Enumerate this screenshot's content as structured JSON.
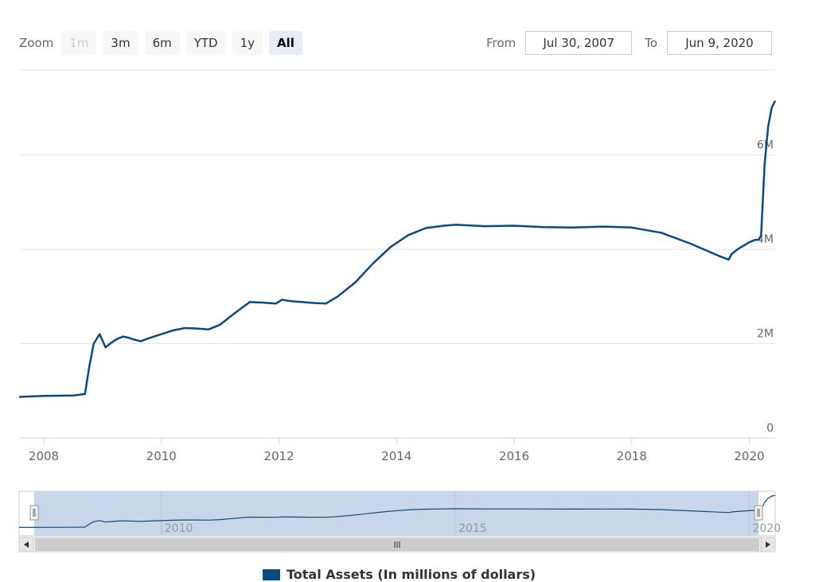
{
  "zoom": {
    "label": "Zoom",
    "buttons": [
      {
        "label": "1m",
        "state": "disabled"
      },
      {
        "label": "3m",
        "state": "normal"
      },
      {
        "label": "6m",
        "state": "normal"
      },
      {
        "label": "YTD",
        "state": "normal"
      },
      {
        "label": "1y",
        "state": "normal"
      },
      {
        "label": "All",
        "state": "active"
      }
    ]
  },
  "range": {
    "from_label": "From",
    "from_value": "Jul 30, 2007",
    "to_label": "To",
    "to_value": "Jun 9, 2020"
  },
  "colors": {
    "series": "#0b4a7e",
    "navigator_fill": "#c9d6ea",
    "grid": "#e6e6e6"
  },
  "navigator": {
    "tick_labels": [
      "2010",
      "2015",
      "2020"
    ]
  },
  "chart_data": {
    "type": "line",
    "title": "",
    "xlabel": "",
    "ylabel": "",
    "x_ticks": [
      "2008",
      "2010",
      "2012",
      "2014",
      "2016",
      "2018",
      "2020"
    ],
    "y_ticks": [
      "0",
      "2M",
      "4M",
      "6M"
    ],
    "xlim": [
      2007.58,
      2020.44
    ],
    "ylim": [
      0,
      7800000
    ],
    "grid": true,
    "legend": "bottom-center",
    "series": [
      {
        "name": "Total Assets (In millions of dollars)",
        "x": [
          2007.58,
          2008.0,
          2008.5,
          2008.7,
          2008.78,
          2008.85,
          2008.95,
          2009.05,
          2009.15,
          2009.25,
          2009.35,
          2009.45,
          2009.55,
          2009.65,
          2009.8,
          2010.0,
          2010.2,
          2010.4,
          2010.6,
          2010.8,
          2011.0,
          2011.2,
          2011.5,
          2011.7,
          2011.95,
          2012.05,
          2012.2,
          2012.4,
          2012.6,
          2012.8,
          2013.0,
          2013.3,
          2013.6,
          2013.9,
          2014.2,
          2014.5,
          2014.8,
          2015.0,
          2015.5,
          2016.0,
          2016.5,
          2017.0,
          2017.5,
          2018.0,
          2018.5,
          2019.0,
          2019.5,
          2019.65,
          2019.7,
          2019.8,
          2020.0,
          2020.1,
          2020.16,
          2020.2,
          2020.26,
          2020.32,
          2020.38,
          2020.44
        ],
        "y": [
          870000,
          890000,
          900000,
          930000,
          1550000,
          2000000,
          2200000,
          1920000,
          2020000,
          2100000,
          2150000,
          2120000,
          2080000,
          2050000,
          2120000,
          2200000,
          2280000,
          2330000,
          2320000,
          2300000,
          2400000,
          2600000,
          2880000,
          2870000,
          2850000,
          2930000,
          2900000,
          2880000,
          2860000,
          2850000,
          3000000,
          3300000,
          3700000,
          4050000,
          4300000,
          4450000,
          4500000,
          4520000,
          4490000,
          4500000,
          4470000,
          4460000,
          4480000,
          4460000,
          4350000,
          4120000,
          3850000,
          3780000,
          3900000,
          4000000,
          4150000,
          4200000,
          4200000,
          4300000,
          5800000,
          6600000,
          7000000,
          7150000
        ]
      }
    ]
  }
}
